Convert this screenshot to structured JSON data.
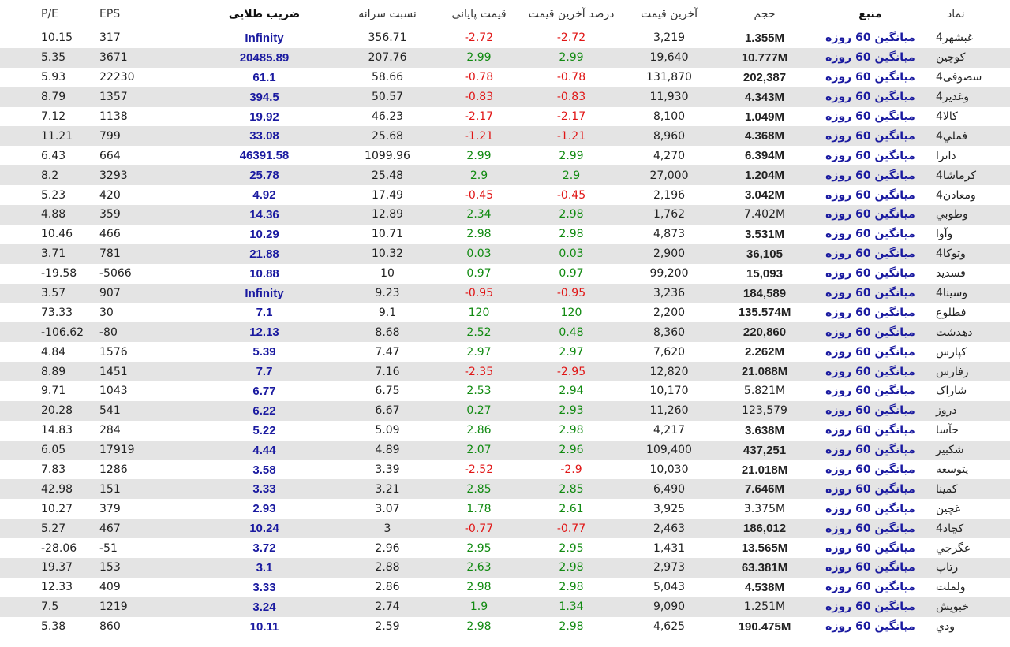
{
  "headers": {
    "pe": "P/E",
    "eps": "EPS",
    "gold": "ضریب طلایی",
    "per_capita": "نسبت سرانه",
    "close_price": "قیمت پایانی",
    "last_pct": "درصد آخرین قیمت",
    "last_price": "آخرین قیمت",
    "volume": "حجم",
    "source": "منبع",
    "symbol": "نماد"
  },
  "rows": [
    {
      "pe": "10.15",
      "eps": "317",
      "gold": "Infinity",
      "per_capita": "356.71",
      "close": "-2.72",
      "last_pct": "-2.72",
      "last_price": "3,219",
      "volume": "1.355M",
      "vol_bold": true,
      "source": "میانگین 60 روزه",
      "symbol": "غبشهر4"
    },
    {
      "pe": "5.35",
      "eps": "3671",
      "gold": "20485.89",
      "per_capita": "207.76",
      "close": "2.99",
      "last_pct": "2.99",
      "last_price": "19,640",
      "volume": "10.777M",
      "vol_bold": true,
      "source": "میانگین 60 روزه",
      "symbol": "کوچین"
    },
    {
      "pe": "5.93",
      "eps": "22230",
      "gold": "61.1",
      "per_capita": "58.66",
      "close": "-0.78",
      "last_pct": "-0.78",
      "last_price": "131,870",
      "volume": "202,387",
      "vol_bold": true,
      "source": "میانگین 60 روزه",
      "symbol": "سصوفی4"
    },
    {
      "pe": "8.79",
      "eps": "1357",
      "gold": "394.5",
      "per_capita": "50.57",
      "close": "-0.83",
      "last_pct": "-0.83",
      "last_price": "11,930",
      "volume": "4.343M",
      "vol_bold": true,
      "source": "میانگین 60 روزه",
      "symbol": "وغدیر4"
    },
    {
      "pe": "7.12",
      "eps": "1138",
      "gold": "19.92",
      "per_capita": "46.23",
      "close": "-2.17",
      "last_pct": "-2.17",
      "last_price": "8,100",
      "volume": "1.049M",
      "vol_bold": true,
      "source": "میانگین 60 روزه",
      "symbol": "کالا4"
    },
    {
      "pe": "11.21",
      "eps": "799",
      "gold": "33.08",
      "per_capita": "25.68",
      "close": "-1.21",
      "last_pct": "-1.21",
      "last_price": "8,960",
      "volume": "4.368M",
      "vol_bold": true,
      "source": "میانگین 60 روزه",
      "symbol": "فملي4"
    },
    {
      "pe": "6.43",
      "eps": "664",
      "gold": "46391.58",
      "per_capita": "1099.96",
      "close": "2.99",
      "last_pct": "2.99",
      "last_price": "4,270",
      "volume": "6.394M",
      "vol_bold": true,
      "source": "میانگین 60 روزه",
      "symbol": "داترا"
    },
    {
      "pe": "8.2",
      "eps": "3293",
      "gold": "25.78",
      "per_capita": "25.48",
      "close": "2.9",
      "last_pct": "2.9",
      "last_price": "27,000",
      "volume": "1.204M",
      "vol_bold": true,
      "source": "میانگین 60 روزه",
      "symbol": "کرماشا4"
    },
    {
      "pe": "5.23",
      "eps": "420",
      "gold": "4.92",
      "per_capita": "17.49",
      "close": "-0.45",
      "last_pct": "-0.45",
      "last_price": "2,196",
      "volume": "3.042M",
      "vol_bold": true,
      "source": "میانگین 60 روزه",
      "symbol": "ومعادن4"
    },
    {
      "pe": "4.88",
      "eps": "359",
      "gold": "14.36",
      "per_capita": "12.89",
      "close": "2.34",
      "last_pct": "2.98",
      "last_price": "1,762",
      "volume": "7.402M",
      "vol_bold": false,
      "source": "میانگین 60 روزه",
      "symbol": "وطوبي"
    },
    {
      "pe": "10.46",
      "eps": "466",
      "gold": "10.29",
      "per_capita": "10.71",
      "close": "2.98",
      "last_pct": "2.98",
      "last_price": "4,873",
      "volume": "3.531M",
      "vol_bold": true,
      "source": "میانگین 60 روزه",
      "symbol": "وآوا"
    },
    {
      "pe": "3.71",
      "eps": "781",
      "gold": "21.88",
      "per_capita": "10.32",
      "close": "0.03",
      "last_pct": "0.03",
      "last_price": "2,900",
      "volume": "36,105",
      "vol_bold": true,
      "source": "میانگین 60 روزه",
      "symbol": "وتوکا4"
    },
    {
      "pe": "-19.58",
      "eps": "-5066",
      "gold": "10.88",
      "per_capita": "10",
      "close": "0.97",
      "last_pct": "0.97",
      "last_price": "99,200",
      "volume": "15,093",
      "vol_bold": true,
      "source": "میانگین 60 روزه",
      "symbol": "فسديد"
    },
    {
      "pe": "3.57",
      "eps": "907",
      "gold": "Infinity",
      "per_capita": "9.23",
      "close": "-0.95",
      "last_pct": "-0.95",
      "last_price": "3,236",
      "volume": "184,589",
      "vol_bold": true,
      "source": "میانگین 60 روزه",
      "symbol": "وسينا4"
    },
    {
      "pe": "73.33",
      "eps": "30",
      "gold": "7.1",
      "per_capita": "9.1",
      "close": "120",
      "last_pct": "120",
      "last_price": "2,200",
      "volume": "135.574M",
      "vol_bold": true,
      "source": "میانگین 60 روزه",
      "symbol": "فطلوع"
    },
    {
      "pe": "-106.62",
      "eps": "-80",
      "gold": "12.13",
      "per_capita": "8.68",
      "close": "2.52",
      "last_pct": "0.48",
      "last_price": "8,360",
      "volume": "220,860",
      "vol_bold": true,
      "source": "میانگین 60 روزه",
      "symbol": "دهدشت"
    },
    {
      "pe": "4.84",
      "eps": "1576",
      "gold": "5.39",
      "per_capita": "7.47",
      "close": "2.97",
      "last_pct": "2.97",
      "last_price": "7,620",
      "volume": "2.262M",
      "vol_bold": true,
      "source": "میانگین 60 روزه",
      "symbol": "کپارس"
    },
    {
      "pe": "8.89",
      "eps": "1451",
      "gold": "7.7",
      "per_capita": "7.16",
      "close": "-2.35",
      "last_pct": "-2.95",
      "last_price": "12,820",
      "volume": "21.088M",
      "vol_bold": true,
      "source": "میانگین 60 روزه",
      "symbol": "زفارس"
    },
    {
      "pe": "9.71",
      "eps": "1043",
      "gold": "6.77",
      "per_capita": "6.75",
      "close": "2.53",
      "last_pct": "2.94",
      "last_price": "10,170",
      "volume": "5.821M",
      "vol_bold": false,
      "source": "میانگین 60 روزه",
      "symbol": "شاراک"
    },
    {
      "pe": "20.28",
      "eps": "541",
      "gold": "6.22",
      "per_capita": "6.67",
      "close": "0.27",
      "last_pct": "2.93",
      "last_price": "11,260",
      "volume": "123,579",
      "vol_bold": false,
      "source": "میانگین 60 روزه",
      "symbol": "دروز"
    },
    {
      "pe": "14.83",
      "eps": "284",
      "gold": "5.22",
      "per_capita": "5.09",
      "close": "2.86",
      "last_pct": "2.98",
      "last_price": "4,217",
      "volume": "3.638M",
      "vol_bold": true,
      "source": "میانگین 60 روزه",
      "symbol": "حآسا"
    },
    {
      "pe": "6.05",
      "eps": "17919",
      "gold": "4.44",
      "per_capita": "4.89",
      "close": "2.07",
      "last_pct": "2.96",
      "last_price": "109,400",
      "volume": "437,251",
      "vol_bold": true,
      "source": "میانگین 60 روزه",
      "symbol": "شکبیر"
    },
    {
      "pe": "7.83",
      "eps": "1286",
      "gold": "3.58",
      "per_capita": "3.39",
      "close": "-2.52",
      "last_pct": "-2.9",
      "last_price": "10,030",
      "volume": "21.018M",
      "vol_bold": true,
      "source": "میانگین 60 روزه",
      "symbol": "پتوسعه"
    },
    {
      "pe": "42.98",
      "eps": "151",
      "gold": "3.33",
      "per_capita": "3.21",
      "close": "2.85",
      "last_pct": "2.85",
      "last_price": "6,490",
      "volume": "7.646M",
      "vol_bold": true,
      "source": "میانگین 60 روزه",
      "symbol": "کمینا"
    },
    {
      "pe": "10.27",
      "eps": "379",
      "gold": "2.93",
      "per_capita": "3.07",
      "close": "1.78",
      "last_pct": "2.61",
      "last_price": "3,925",
      "volume": "3.375M",
      "vol_bold": false,
      "source": "میانگین 60 روزه",
      "symbol": "غچین"
    },
    {
      "pe": "5.27",
      "eps": "467",
      "gold": "10.24",
      "per_capita": "3",
      "close": "-0.77",
      "last_pct": "-0.77",
      "last_price": "2,463",
      "volume": "186,012",
      "vol_bold": true,
      "source": "میانگین 60 روزه",
      "symbol": "کچاد4"
    },
    {
      "pe": "-28.06",
      "eps": "-51",
      "gold": "3.72",
      "per_capita": "2.96",
      "close": "2.95",
      "last_pct": "2.95",
      "last_price": "1,431",
      "volume": "13.565M",
      "vol_bold": true,
      "source": "میانگین 60 روزه",
      "symbol": "غگرجي"
    },
    {
      "pe": "19.37",
      "eps": "153",
      "gold": "3.1",
      "per_capita": "2.88",
      "close": "2.63",
      "last_pct": "2.98",
      "last_price": "2,973",
      "volume": "63.381M",
      "vol_bold": true,
      "source": "میانگین 60 روزه",
      "symbol": "رتاپ"
    },
    {
      "pe": "12.33",
      "eps": "409",
      "gold": "3.33",
      "per_capita": "2.86",
      "close": "2.98",
      "last_pct": "2.98",
      "last_price": "5,043",
      "volume": "4.538M",
      "vol_bold": true,
      "source": "میانگین 60 روزه",
      "symbol": "ولملت"
    },
    {
      "pe": "7.5",
      "eps": "1219",
      "gold": "3.24",
      "per_capita": "2.74",
      "close": "1.9",
      "last_pct": "1.34",
      "last_price": "9,090",
      "volume": "1.251M",
      "vol_bold": false,
      "source": "میانگین 60 روزه",
      "symbol": "خبويش"
    },
    {
      "pe": "5.38",
      "eps": "860",
      "gold": "10.11",
      "per_capita": "2.59",
      "close": "2.98",
      "last_pct": "2.98",
      "last_price": "4,625",
      "volume": "190.475M",
      "vol_bold": true,
      "source": "میانگین 60 روزه",
      "symbol": "ودي"
    }
  ],
  "colors": {
    "positive": "#118a11",
    "negative": "#e01515",
    "gold": "#1a1aa0",
    "stripe": "#e4e4e4"
  }
}
